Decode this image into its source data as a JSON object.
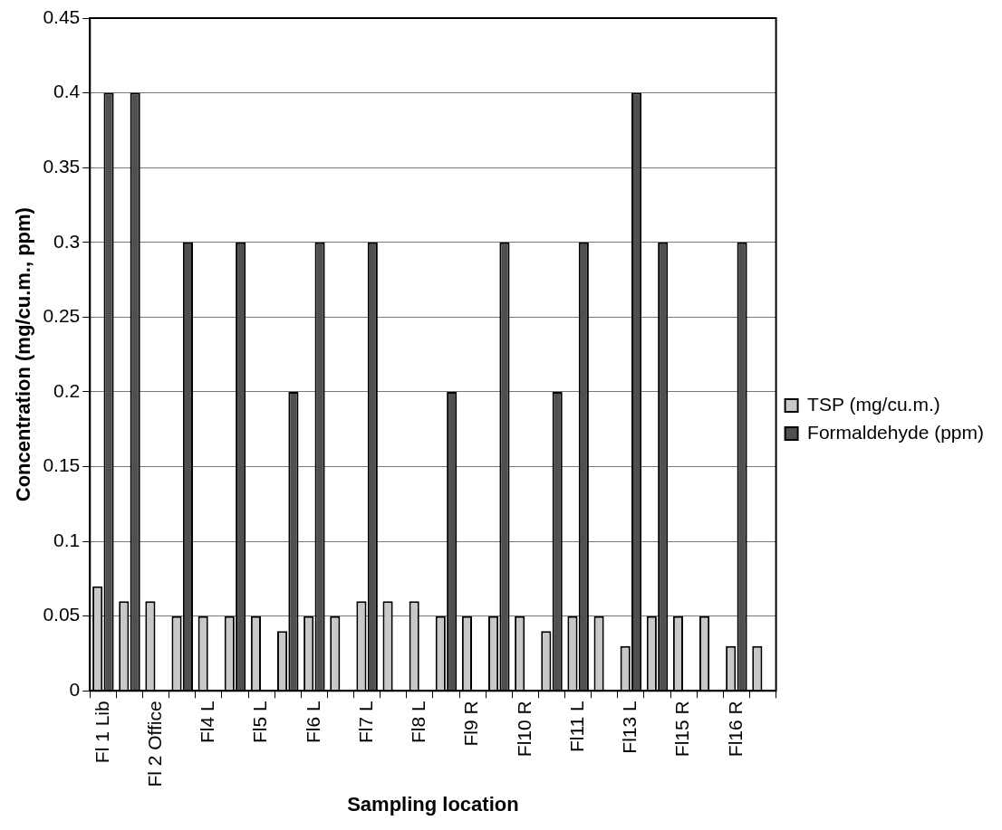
{
  "chart_data": {
    "type": "bar",
    "xlabel": "Sampling location",
    "ylabel": "Concentration (mg/cu.m., ppm)",
    "categories": [
      "Fl 1 Lib",
      null,
      "Fl 2 Office",
      null,
      "Fl4 L",
      null,
      "Fl5 L",
      null,
      "Fl6 L",
      null,
      "Fl7 L",
      null,
      "Fl8 L",
      null,
      "Fl9 R",
      null,
      "Fl10 R",
      null,
      "Fl11 L",
      null,
      "Fl13 L",
      null,
      "Fl15 R",
      null,
      "Fl16 R",
      null
    ],
    "series": [
      {
        "name": "TSP (mg/cu.m.)",
        "color": "#c8c8c8",
        "values": [
          0.07,
          0.06,
          0.06,
          0.05,
          0.05,
          0.05,
          0.05,
          0.04,
          0.05,
          0.05,
          0.06,
          0.06,
          0.06,
          0.05,
          0.05,
          0.05,
          0.05,
          0.04,
          0.05,
          0.05,
          0.03,
          0.05,
          0.05,
          0.05,
          0.03,
          0.03
        ]
      },
      {
        "name": "Formaldehyde (ppm)",
        "color": "#505050",
        "values": [
          0.4,
          0.4,
          null,
          0.3,
          null,
          0.3,
          null,
          0.2,
          0.3,
          null,
          0.3,
          null,
          null,
          0.2,
          null,
          0.3,
          null,
          0.2,
          0.3,
          null,
          0.4,
          0.3,
          null,
          null,
          0.3,
          null
        ]
      }
    ],
    "ylim": [
      0,
      0.45
    ],
    "yticks": [
      0,
      0.05,
      0.1,
      0.15,
      0.2,
      0.25,
      0.3,
      0.35,
      0.4,
      0.45
    ],
    "grid": "y",
    "legend": "right"
  }
}
